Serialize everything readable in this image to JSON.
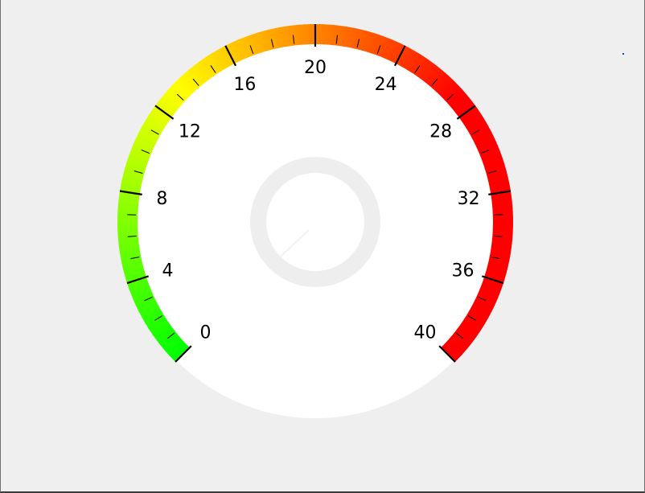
{
  "gauge": {
    "min": 0,
    "max": 40,
    "value": 0,
    "start_angle_deg": 225,
    "sweep_deg": 270,
    "major_step": 4,
    "minor_per_major": 4,
    "labels": [
      "0",
      "4",
      "8",
      "12",
      "16",
      "20",
      "24",
      "28",
      "32",
      "36",
      "40"
    ],
    "colors": {
      "low": "#00ff00",
      "mid": "#ffff00",
      "high": "#ff0000",
      "dial_face": "#ffffff",
      "background": "#efefef",
      "inner_ring": "#eeeeee",
      "tick": "#000000",
      "needle": "#f2f2f2"
    }
  },
  "corner_marker": {
    "color": "#1f3fd0"
  }
}
